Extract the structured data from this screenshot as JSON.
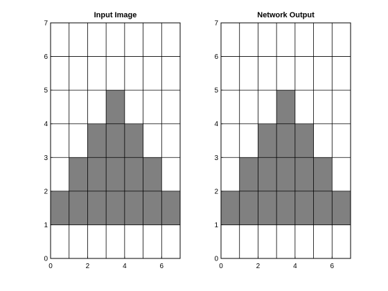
{
  "colors": {
    "filled": "#808080",
    "empty": "#ffffff",
    "line": "#000000",
    "background": "#ffffff"
  },
  "chart_data": [
    {
      "type": "heatmap",
      "title": "Input Image",
      "xlim": [
        0,
        7
      ],
      "ylim": [
        0,
        7
      ],
      "xticks": [
        0,
        2,
        4,
        6
      ],
      "yticks": [
        0,
        1,
        2,
        3,
        4,
        5,
        6,
        7
      ],
      "grid": true,
      "rows_bottom_to_top": [
        [
          0,
          0,
          0,
          0,
          0,
          0,
          0
        ],
        [
          1,
          1,
          1,
          1,
          1,
          1,
          1
        ],
        [
          0,
          1,
          1,
          1,
          1,
          1,
          0
        ],
        [
          0,
          0,
          1,
          1,
          1,
          0,
          0
        ],
        [
          0,
          0,
          0,
          1,
          0,
          0,
          0
        ],
        [
          0,
          0,
          0,
          0,
          0,
          0,
          0
        ],
        [
          0,
          0,
          0,
          0,
          0,
          0,
          0
        ]
      ]
    },
    {
      "type": "heatmap",
      "title": "Network Output",
      "xlim": [
        0,
        7
      ],
      "ylim": [
        0,
        7
      ],
      "xticks": [
        0,
        2,
        4,
        6
      ],
      "yticks": [
        0,
        1,
        2,
        3,
        4,
        5,
        6,
        7
      ],
      "grid": true,
      "rows_bottom_to_top": [
        [
          0,
          0,
          0,
          0,
          0,
          0,
          0
        ],
        [
          1,
          1,
          1,
          1,
          1,
          1,
          1
        ],
        [
          0,
          1,
          1,
          1,
          1,
          1,
          0
        ],
        [
          0,
          0,
          1,
          1,
          1,
          0,
          0
        ],
        [
          0,
          0,
          0,
          1,
          0,
          0,
          0
        ],
        [
          0,
          0,
          0,
          0,
          0,
          0,
          0
        ],
        [
          0,
          0,
          0,
          0,
          0,
          0,
          0
        ]
      ]
    }
  ]
}
